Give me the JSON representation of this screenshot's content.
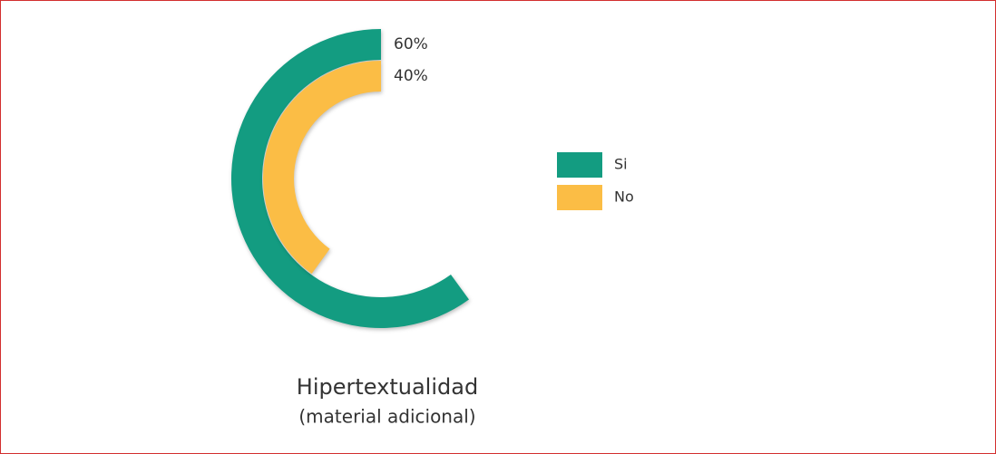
{
  "chart_data": {
    "type": "radial_bar",
    "title": "Hipertextualidad",
    "subtitle": "(material adicional)",
    "categories": [
      "Si",
      "No"
    ],
    "values": [
      60,
      40
    ],
    "value_labels": [
      "60%",
      "40%"
    ],
    "colors": [
      "#139c81",
      "#fbbd45"
    ],
    "ylim": [
      0,
      100
    ],
    "legend": "right"
  }
}
